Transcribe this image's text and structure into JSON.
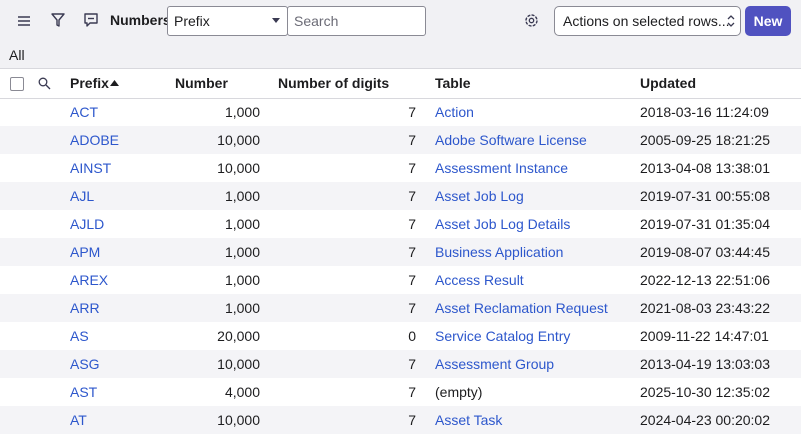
{
  "header": {
    "title": "Numbers",
    "search_field": "Prefix",
    "search_placeholder": "Search",
    "actions": "Actions on selected rows...",
    "new_button": "New"
  },
  "breadcrumb": "All",
  "table": {
    "columns": [
      "Prefix",
      "Number",
      "Number of digits",
      "Table",
      "Updated"
    ],
    "rows": [
      [
        "ACT",
        "1,000",
        "7",
        "Action",
        "2018-03-16 11:24:09"
      ],
      [
        "ADOBE",
        "10,000",
        "7",
        "Adobe Software License",
        "2005-09-25 18:21:25"
      ],
      [
        "AINST",
        "10,000",
        "7",
        "Assessment Instance",
        "2013-04-08 13:38:01"
      ],
      [
        "AJL",
        "1,000",
        "7",
        "Asset Job Log",
        "2019-07-31 00:55:08"
      ],
      [
        "AJLD",
        "1,000",
        "7",
        "Asset Job Log Details",
        "2019-07-31 01:35:04"
      ],
      [
        "APM",
        "1,000",
        "7",
        "Business Application",
        "2019-08-07 03:44:45"
      ],
      [
        "AREX",
        "1,000",
        "7",
        "Access Result",
        "2022-12-13 22:51:06"
      ],
      [
        "ARR",
        "1,000",
        "7",
        "Asset Reclamation Request",
        "2021-08-03 23:43:22"
      ],
      [
        "AS",
        "20,000",
        "0",
        "Service Catalog Entry",
        "2009-11-22 14:47:01"
      ],
      [
        "ASG",
        "10,000",
        "7",
        "Assessment Group",
        "2013-04-19 13:03:03"
      ],
      [
        "AST",
        "4,000",
        "7",
        "(empty)",
        "2025-10-30 12:35:02"
      ],
      [
        "AT",
        "10,000",
        "7",
        "Asset Task",
        "2024-04-23 00:20:02"
      ]
    ]
  }
}
